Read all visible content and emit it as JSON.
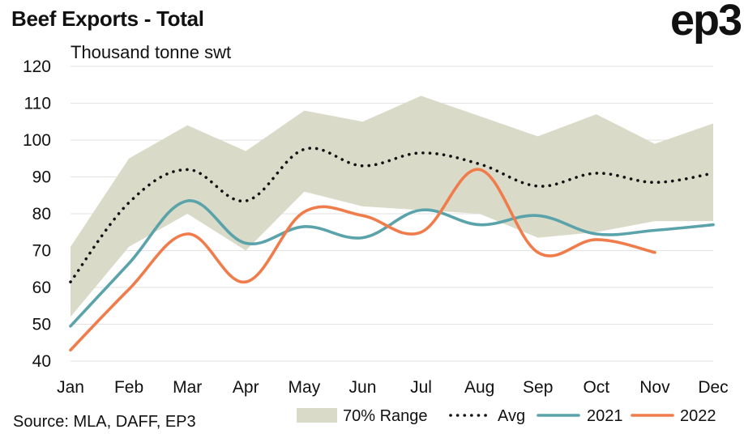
{
  "title": "Beef Exports - Total",
  "logo": "ep3",
  "unit_label": "Thousand tonne swt",
  "source": "Source: MLA, DAFF, EP3",
  "colors": {
    "range_fill": "#d9dbc8",
    "avg": "#111111",
    "s2021": "#5aa3aa",
    "s2022": "#f07c4c",
    "grid": "#e2e2e2"
  },
  "chart_data": {
    "type": "line",
    "categories": [
      "Jan",
      "Feb",
      "Mar",
      "Apr",
      "May",
      "Jun",
      "Jul",
      "Aug",
      "Sep",
      "Oct",
      "Nov",
      "Dec"
    ],
    "ylim": [
      40,
      120
    ],
    "yticks": [
      40,
      50,
      60,
      70,
      80,
      90,
      100,
      110,
      120
    ],
    "grid": true,
    "legend_position": "bottom",
    "range": {
      "name": "70% Range",
      "low": [
        52,
        71,
        80,
        70,
        86,
        82,
        81,
        80,
        73.5,
        75,
        78,
        78
      ],
      "high": [
        71,
        95,
        104,
        97,
        108,
        105,
        112,
        106.5,
        101,
        107,
        99,
        104.5
      ]
    },
    "series": [
      {
        "name": "Avg",
        "style": "dotted",
        "values": [
          61.5,
          83,
          92,
          83.5,
          97.5,
          93,
          96.5,
          93.5,
          87.5,
          91,
          88.5,
          91
        ]
      },
      {
        "name": "2021",
        "style": "solid",
        "values": [
          49.5,
          66.5,
          83.5,
          72,
          76.5,
          73.5,
          81,
          77,
          79.5,
          74.5,
          75.5,
          77
        ]
      },
      {
        "name": "2022",
        "style": "solid",
        "values": [
          43,
          59.5,
          74.5,
          61.5,
          80.5,
          79.5,
          75,
          92,
          69.5,
          73,
          69.5,
          null
        ]
      }
    ]
  }
}
